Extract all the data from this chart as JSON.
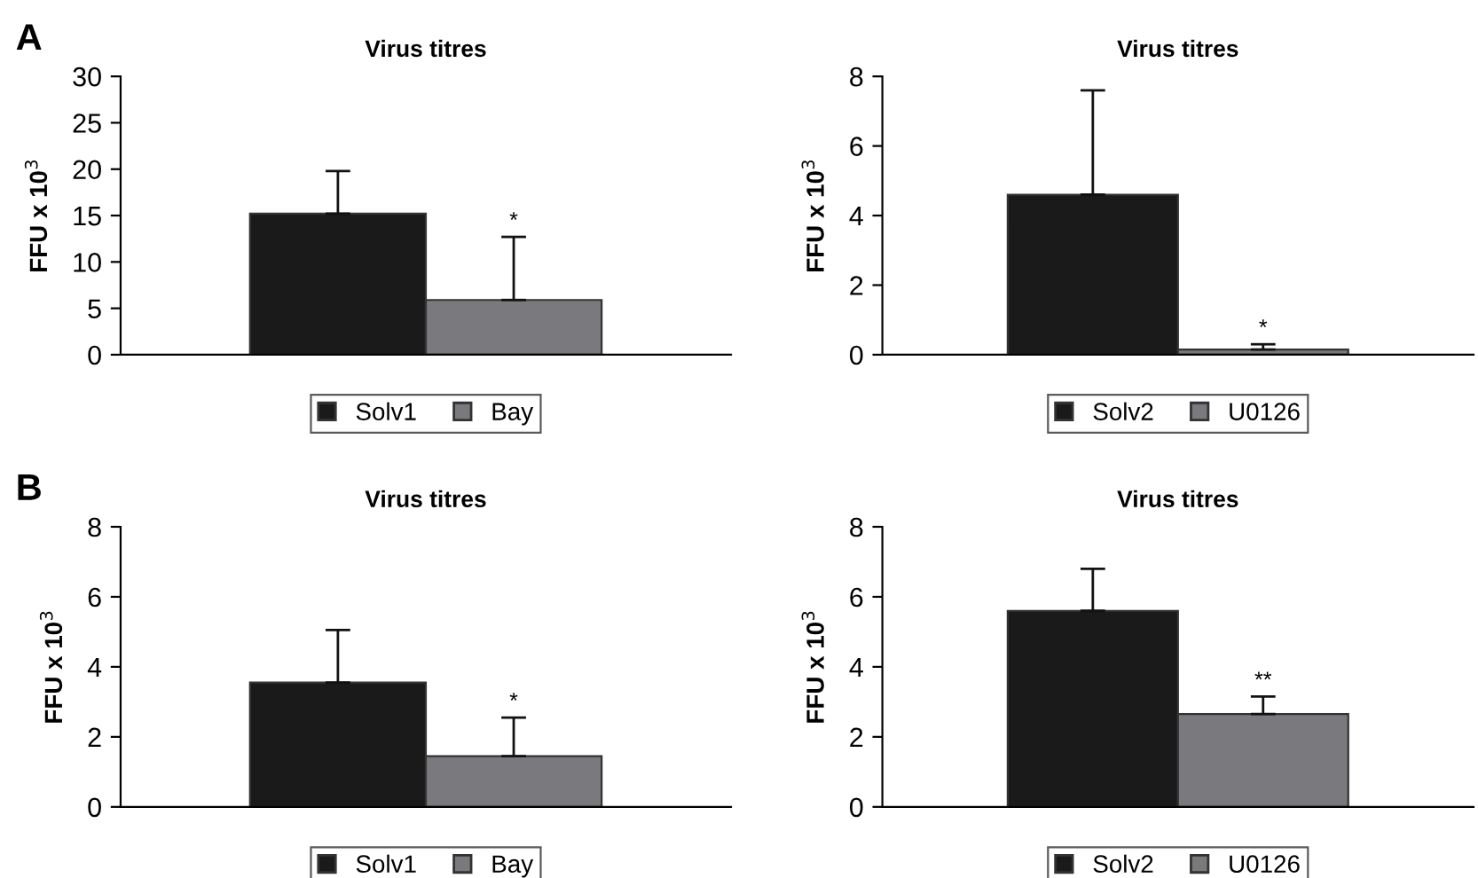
{
  "chart_data": [
    {
      "type": "bar",
      "title": "Virus titres",
      "ylabel": "FFU x 10$^{3}$",
      "categories": [
        null
      ],
      "ylim": [
        0,
        30
      ],
      "yticks": [
        0,
        5,
        10,
        15,
        20,
        25,
        30
      ],
      "legend": "bottom",
      "tick_labels": "y",
      "series": [
        {
          "name": "Solv1",
          "color": "#1a1a1a",
          "values": [
            15.2
          ],
          "errors": [
            [
              15.2,
              19.8
            ]
          ]
        },
        {
          "name": "Bay",
          "color": "#7a7a7e",
          "values": [
            5.9
          ],
          "errors": [
            [
              5.9,
              12.7
            ]
          ]
        }
      ],
      "annotations": [
        "A",
        {
          "text": "*",
          "y": 12.7
        }
      ]
    },
    {
      "type": "bar",
      "title": "Virus titres",
      "ylabel": "FFU x 10$^{3}$",
      "categories": [
        null
      ],
      "ylim": [
        0,
        8
      ],
      "yticks": [
        0,
        2,
        4,
        6,
        8
      ],
      "legend": "bottom",
      "tick_labels": "y",
      "series": [
        {
          "name": "Solv2",
          "color": "#1a1a1a",
          "values": [
            4.6
          ],
          "errors": [
            [
              4.6,
              7.6
            ]
          ]
        },
        {
          "name": "U0126",
          "color": "#7a7a7e",
          "values": [
            0.15
          ],
          "errors": [
            [
              0.15,
              0.3
            ]
          ]
        }
      ],
      "annotations": [
        {
          "text": "*",
          "y": 0.3
        }
      ]
    },
    {
      "type": "bar",
      "title": "Virus titres",
      "ylabel": "FFU x 10$^{3}$",
      "categories": [
        null
      ],
      "ylim": [
        0,
        8
      ],
      "yticks": [
        0,
        2,
        4,
        6,
        8
      ],
      "legend": "bottom",
      "tick_labels": "y",
      "series": [
        {
          "name": "Solv1",
          "color": "#1a1a1a",
          "values": [
            3.55
          ],
          "errors": [
            [
              3.55,
              5.05
            ]
          ]
        },
        {
          "name": "Bay",
          "color": "#7a7a7e",
          "values": [
            1.45
          ],
          "errors": [
            [
              1.45,
              2.55
            ]
          ]
        }
      ],
      "annotations": [
        "B",
        {
          "text": "*",
          "y": 2.55
        }
      ]
    },
    {
      "type": "bar",
      "title": "Virus titres",
      "ylabel": "FFU x 10$^{3}$",
      "categories": [
        null
      ],
      "ylim": [
        0,
        8
      ],
      "yticks": [
        0,
        2,
        4,
        6,
        8
      ],
      "legend": "bottom",
      "tick_labels": "y",
      "series": [
        {
          "name": "Solv2",
          "color": "#1a1a1a",
          "values": [
            5.6
          ],
          "errors": [
            [
              5.6,
              6.8
            ]
          ]
        },
        {
          "name": "U0126",
          "color": "#7a7a7e",
          "values": [
            2.65
          ],
          "errors": [
            [
              2.65,
              3.15
            ]
          ]
        }
      ],
      "annotations": [
        {
          "text": "**",
          "y": 3.15
        }
      ]
    }
  ]
}
